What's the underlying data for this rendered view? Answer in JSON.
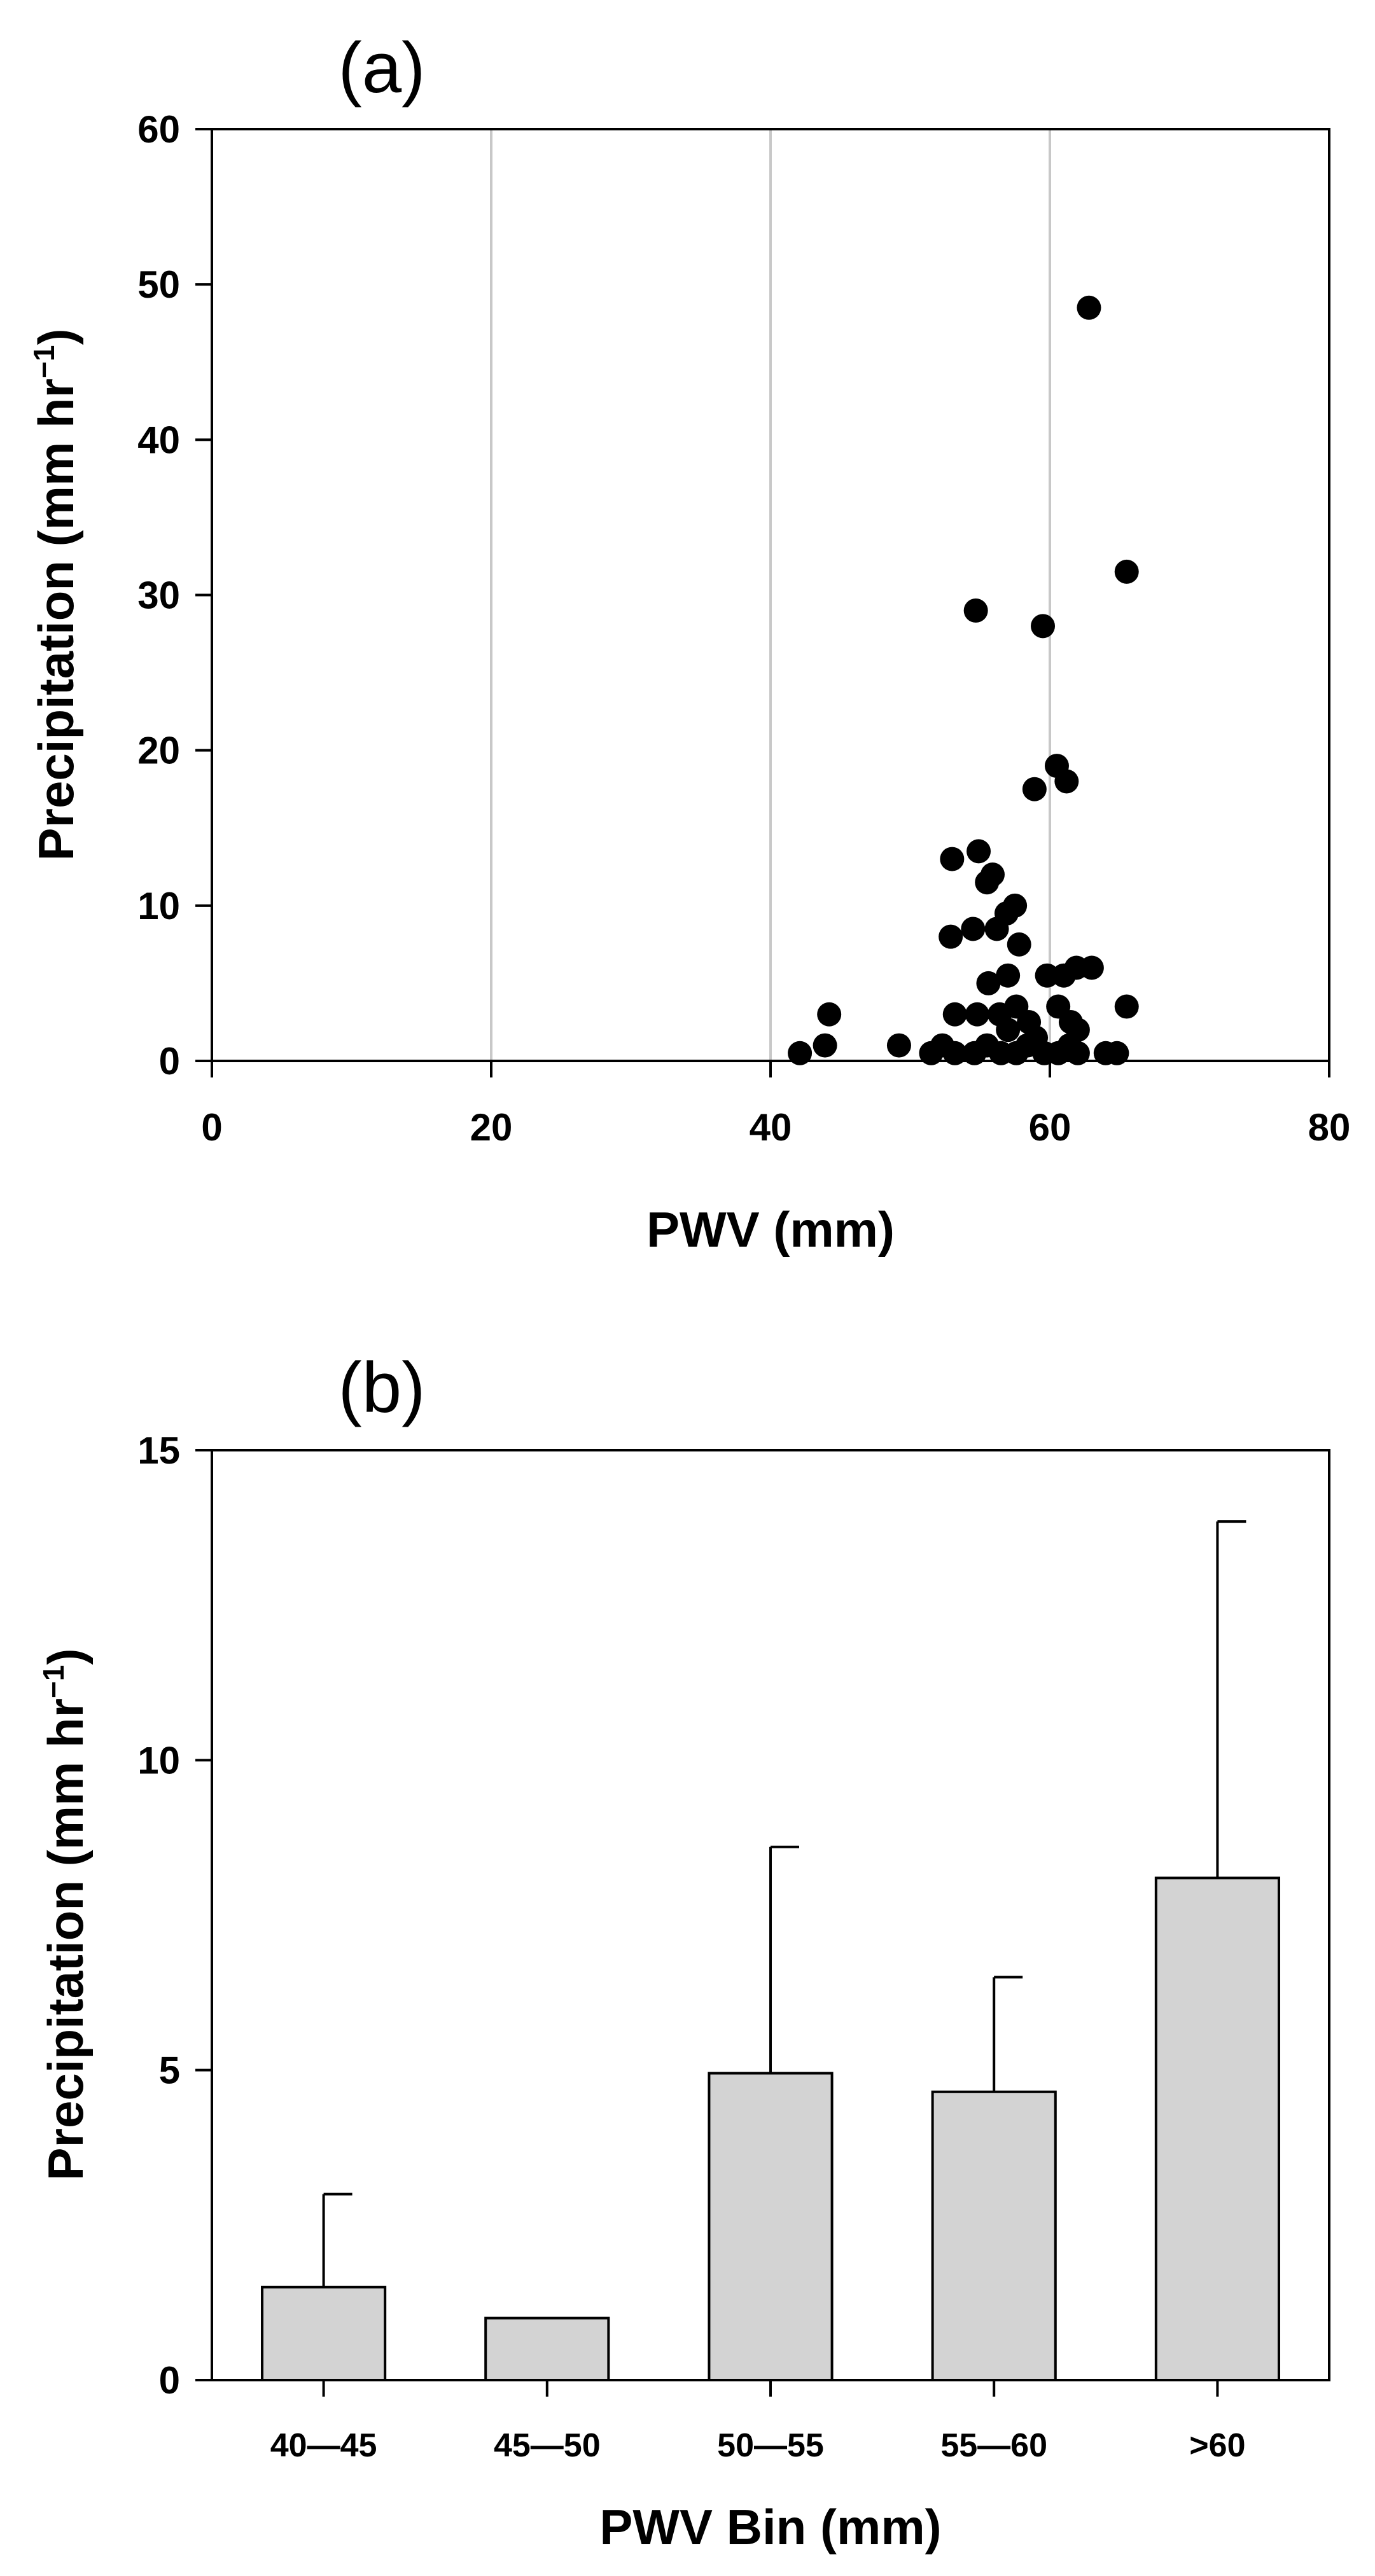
{
  "chart_data": [
    {
      "panel": "(a)",
      "type": "scatter",
      "xlabel": "PWV (mm)",
      "ylabel": "Precipitation (mm hr",
      "ylabel_superscript": "−1",
      "ylabel_close": ")",
      "xlim": [
        0,
        80
      ],
      "ylim": [
        0,
        60
      ],
      "xticks": [
        0,
        20,
        40,
        60,
        80
      ],
      "yticks": [
        0,
        10,
        20,
        30,
        40,
        50,
        60
      ],
      "vertical_gridlines": [
        20,
        40,
        60
      ],
      "points": [
        [
          62.8,
          48.5
        ],
        [
          65.5,
          31.5
        ],
        [
          54.7,
          29.0
        ],
        [
          59.5,
          28.0
        ],
        [
          60.5,
          19.0
        ],
        [
          61.2,
          18.0
        ],
        [
          58.9,
          17.5
        ],
        [
          53.0,
          13.0
        ],
        [
          54.9,
          13.5
        ],
        [
          55.5,
          11.5
        ],
        [
          55.9,
          12.0
        ],
        [
          57.5,
          10.0
        ],
        [
          56.9,
          9.5
        ],
        [
          54.5,
          8.5
        ],
        [
          56.2,
          8.5
        ],
        [
          52.9,
          8.0
        ],
        [
          57.8,
          7.5
        ],
        [
          61.9,
          6.0
        ],
        [
          63.0,
          6.0
        ],
        [
          59.8,
          5.5
        ],
        [
          61.0,
          5.5
        ],
        [
          57.0,
          5.5
        ],
        [
          55.6,
          5.0
        ],
        [
          65.5,
          3.5
        ],
        [
          60.6,
          3.5
        ],
        [
          57.6,
          3.5
        ],
        [
          54.8,
          3.0
        ],
        [
          53.2,
          3.0
        ],
        [
          56.4,
          3.0
        ],
        [
          44.2,
          3.0
        ],
        [
          58.5,
          2.5
        ],
        [
          61.5,
          2.5
        ],
        [
          62.0,
          2.0
        ],
        [
          57.0,
          2.0
        ],
        [
          59.0,
          1.5
        ],
        [
          55.5,
          1.0
        ],
        [
          49.2,
          1.0
        ],
        [
          43.9,
          1.0
        ],
        [
          42.1,
          0.5
        ],
        [
          51.5,
          0.5
        ],
        [
          52.3,
          1.0
        ],
        [
          53.2,
          0.5
        ],
        [
          54.6,
          0.5
        ],
        [
          56.5,
          0.5
        ],
        [
          57.6,
          0.5
        ],
        [
          58.4,
          1.0
        ],
        [
          59.6,
          0.5
        ],
        [
          60.6,
          0.5
        ],
        [
          61.4,
          1.0
        ],
        [
          62.0,
          0.5
        ],
        [
          64.0,
          0.5
        ],
        [
          64.8,
          0.5
        ]
      ]
    },
    {
      "panel": "(b)",
      "type": "bar",
      "xlabel": "PWV Bin (mm)",
      "ylabel": "Precipitation (mm hr",
      "ylabel_superscript": "−1",
      "ylabel_close": ")",
      "ylim": [
        0,
        15
      ],
      "yticks": [
        0,
        5,
        10,
        15
      ],
      "categories": [
        "40—45",
        "45—50",
        "50—55",
        "55—60",
        ">60"
      ],
      "values": [
        1.5,
        1.0,
        4.95,
        4.65,
        8.1
      ],
      "error_upper": [
        3.0,
        null,
        8.6,
        6.5,
        13.85
      ]
    }
  ]
}
